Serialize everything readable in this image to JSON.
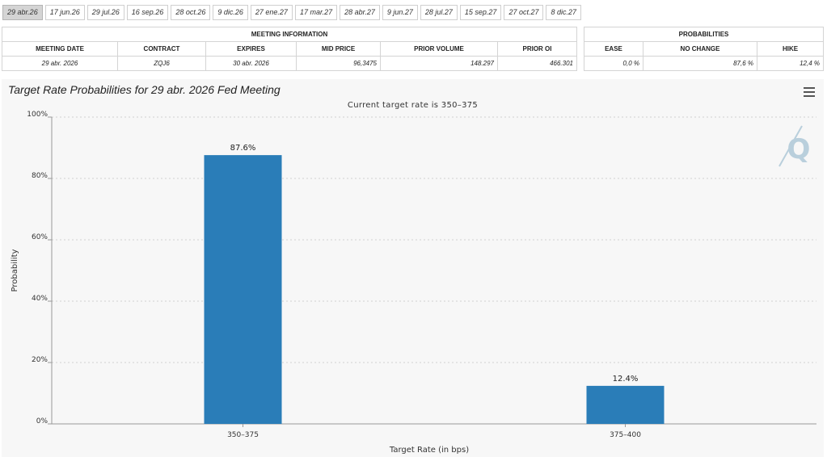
{
  "tabs": [
    {
      "label": "29 abr.26",
      "active": true
    },
    {
      "label": "17 jun.26"
    },
    {
      "label": "29 jul.26"
    },
    {
      "label": "16 sep.26"
    },
    {
      "label": "28 oct.26"
    },
    {
      "label": "9 dic.26"
    },
    {
      "label": "27 ene.27"
    },
    {
      "label": "17 mar.27"
    },
    {
      "label": "28 abr.27"
    },
    {
      "label": "9 jun.27"
    },
    {
      "label": "28 jul.27"
    },
    {
      "label": "15 sep.27"
    },
    {
      "label": "27 oct.27"
    },
    {
      "label": "8 dic.27"
    }
  ],
  "meeting": {
    "header": "MEETING INFORMATION",
    "columns": [
      "MEETING DATE",
      "CONTRACT",
      "EXPIRES",
      "MID PRICE",
      "PRIOR VOLUME",
      "PRIOR OI"
    ],
    "row": [
      "29 abr. 2026",
      "ZQJ6",
      "30 abr. 2026",
      "96,3475",
      "148.297",
      "466.301"
    ]
  },
  "probabilities": {
    "header": "PROBABILITIES",
    "columns": [
      "EASE",
      "NO CHANGE",
      "HIKE"
    ],
    "row": [
      "0,0 %",
      "87,6 %",
      "12,4 %"
    ]
  },
  "chart": {
    "title": "Target Rate Probabilities for 29 abr. 2026 Fed Meeting",
    "subtitle": "Current target rate is 350–375"
  },
  "chart_data": {
    "type": "bar",
    "categories": [
      "350–375",
      "375–400"
    ],
    "values": [
      87.6,
      12.4
    ],
    "data_labels": [
      "87.6%",
      "12.4%"
    ],
    "title": "Target Rate Probabilities for 29 abr. 2026 Fed Meeting",
    "subtitle": "Current target rate is 350–375",
    "xlabel": "Target Rate (in bps)",
    "ylabel": "Probability",
    "ylim": [
      0,
      100
    ],
    "yticks": [
      "0%",
      "20%",
      "40%",
      "60%",
      "80%",
      "100%"
    ],
    "grid": true,
    "bar_color": "#2a7db8"
  },
  "colors": {
    "bar": "#2a7db8",
    "chart_background": "#f7f7f7",
    "watermark": "#b9cfdc"
  }
}
